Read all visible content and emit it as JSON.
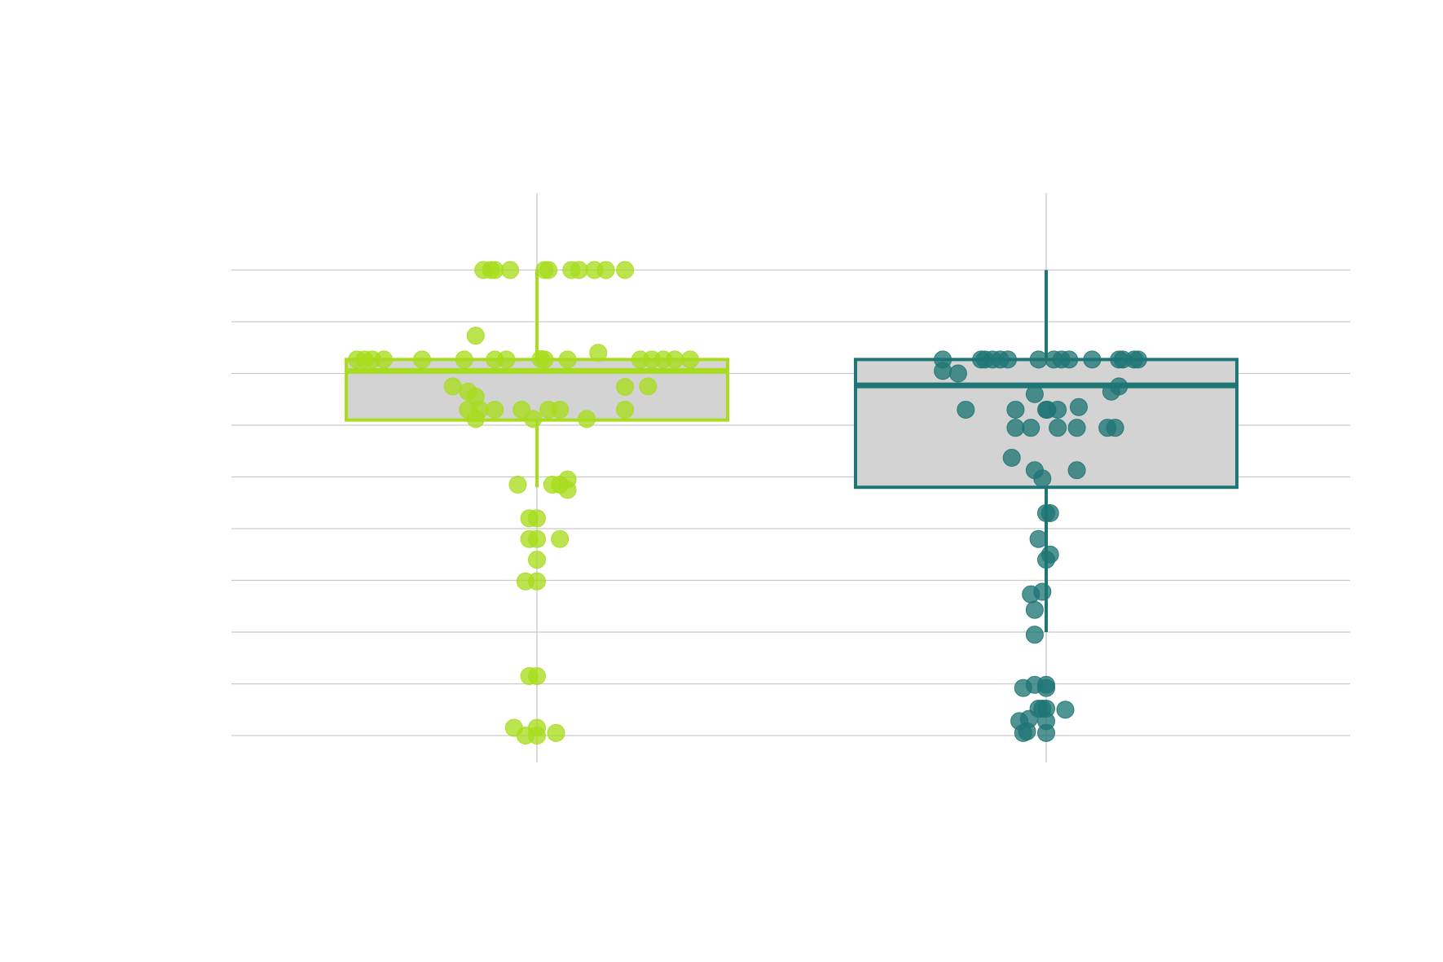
{
  "chart_data": {
    "type": "box",
    "overlay": "jittered-points",
    "grid": "horizontal",
    "ylim": [
      0,
      9.5
    ],
    "gridlines": [
      0,
      1,
      2,
      3,
      4,
      5,
      6,
      7,
      8,
      9
    ],
    "series": [
      {
        "color": "#a8dc1e",
        "box": {
          "min": 4.8,
          "q1": 6.1,
          "median": 7.05,
          "q3": 7.27,
          "max": 9.0
        },
        "points": [
          [
            -0.47,
            7.27
          ],
          [
            -0.45,
            7.27
          ],
          [
            -0.43,
            7.27
          ],
          [
            -0.4,
            7.27
          ],
          [
            -0.3,
            7.27
          ],
          [
            -0.19,
            7.27
          ],
          [
            -0.11,
            7.27
          ],
          [
            -0.08,
            7.27
          ],
          [
            0.01,
            7.28
          ],
          [
            0.02,
            7.27
          ],
          [
            0.08,
            7.27
          ],
          [
            0.16,
            7.4
          ],
          [
            0.27,
            7.27
          ],
          [
            0.3,
            7.27
          ],
          [
            0.33,
            7.27
          ],
          [
            0.36,
            7.27
          ],
          [
            0.4,
            7.27
          ],
          [
            -0.16,
            7.73
          ],
          [
            -0.22,
            6.75
          ],
          [
            -0.18,
            6.65
          ],
          [
            -0.16,
            6.55
          ],
          [
            0.23,
            6.74
          ],
          [
            0.29,
            6.75
          ],
          [
            -0.18,
            6.3
          ],
          [
            -0.15,
            6.3
          ],
          [
            -0.11,
            6.3
          ],
          [
            -0.04,
            6.3
          ],
          [
            0.03,
            6.3
          ],
          [
            0.06,
            6.3
          ],
          [
            0.23,
            6.3
          ],
          [
            -0.16,
            6.12
          ],
          [
            -0.01,
            6.12
          ],
          [
            0.13,
            6.12
          ],
          [
            -0.14,
            9.0
          ],
          [
            -0.12,
            9.0
          ],
          [
            -0.11,
            9.0
          ],
          [
            -0.07,
            9.0
          ],
          [
            0.02,
            9.0
          ],
          [
            0.03,
            9.0
          ],
          [
            0.09,
            9.0
          ],
          [
            0.11,
            9.0
          ],
          [
            0.15,
            9.0
          ],
          [
            0.18,
            9.0
          ],
          [
            0.23,
            9.0
          ],
          [
            -0.05,
            4.85
          ],
          [
            0.04,
            4.85
          ],
          [
            0.06,
            4.85
          ],
          [
            0.08,
            4.95
          ],
          [
            0.08,
            4.75
          ],
          [
            -0.02,
            4.2
          ],
          [
            0.0,
            4.2
          ],
          [
            -0.02,
            3.8
          ],
          [
            0.0,
            3.8
          ],
          [
            0.06,
            3.8
          ],
          [
            0.0,
            3.4
          ],
          [
            -0.03,
            2.98
          ],
          [
            0.0,
            2.98
          ],
          [
            -0.02,
            1.15
          ],
          [
            0.0,
            1.15
          ],
          [
            -0.06,
            0.15
          ],
          [
            0.0,
            0.15
          ],
          [
            -0.03,
            0.0
          ],
          [
            0.0,
            0.0
          ],
          [
            0.05,
            0.05
          ]
        ]
      },
      {
        "color": "#1f7674",
        "box": {
          "min": 2.0,
          "q1": 4.8,
          "median": 6.77,
          "q3": 7.27,
          "max": 9.0
        },
        "points": [
          [
            -0.27,
            7.27
          ],
          [
            -0.17,
            7.27
          ],
          [
            -0.16,
            7.27
          ],
          [
            -0.14,
            7.27
          ],
          [
            -0.12,
            7.27
          ],
          [
            -0.1,
            7.27
          ],
          [
            -0.02,
            7.27
          ],
          [
            0.02,
            7.27
          ],
          [
            0.04,
            7.27
          ],
          [
            0.06,
            7.27
          ],
          [
            0.12,
            7.27
          ],
          [
            0.19,
            7.27
          ],
          [
            0.2,
            7.27
          ],
          [
            0.23,
            7.27
          ],
          [
            0.24,
            7.27
          ],
          [
            -0.27,
            7.05
          ],
          [
            -0.23,
            7.0
          ],
          [
            -0.03,
            6.6
          ],
          [
            0.17,
            6.65
          ],
          [
            0.19,
            6.75
          ],
          [
            -0.21,
            6.3
          ],
          [
            -0.08,
            6.3
          ],
          [
            0.0,
            6.3
          ],
          [
            0.003,
            6.3
          ],
          [
            0.03,
            6.3
          ],
          [
            0.085,
            6.35
          ],
          [
            -0.08,
            5.95
          ],
          [
            -0.04,
            5.95
          ],
          [
            0.03,
            5.95
          ],
          [
            0.08,
            5.95
          ],
          [
            0.16,
            5.95
          ],
          [
            0.18,
            5.95
          ],
          [
            -0.09,
            5.37
          ],
          [
            -0.03,
            5.13
          ],
          [
            0.08,
            5.13
          ],
          [
            -0.01,
            4.97
          ],
          [
            0.0,
            4.3
          ],
          [
            0.01,
            4.3
          ],
          [
            -0.02,
            3.8
          ],
          [
            0.01,
            3.5
          ],
          [
            0.0,
            3.4
          ],
          [
            -0.04,
            2.73
          ],
          [
            -0.01,
            2.78
          ],
          [
            -0.03,
            2.43
          ],
          [
            -0.03,
            1.95
          ],
          [
            -0.06,
            0.92
          ],
          [
            -0.03,
            0.98
          ],
          [
            0.0,
            0.98
          ],
          [
            0.0,
            0.92
          ],
          [
            -0.02,
            0.52
          ],
          [
            -0.01,
            0.52
          ],
          [
            0.0,
            0.52
          ],
          [
            0.05,
            0.5
          ],
          [
            -0.07,
            0.28
          ],
          [
            -0.045,
            0.32
          ],
          [
            0.0,
            0.28
          ],
          [
            -0.06,
            0.05
          ],
          [
            -0.05,
            0.08
          ],
          [
            0.0,
            0.05
          ]
        ]
      }
    ]
  }
}
